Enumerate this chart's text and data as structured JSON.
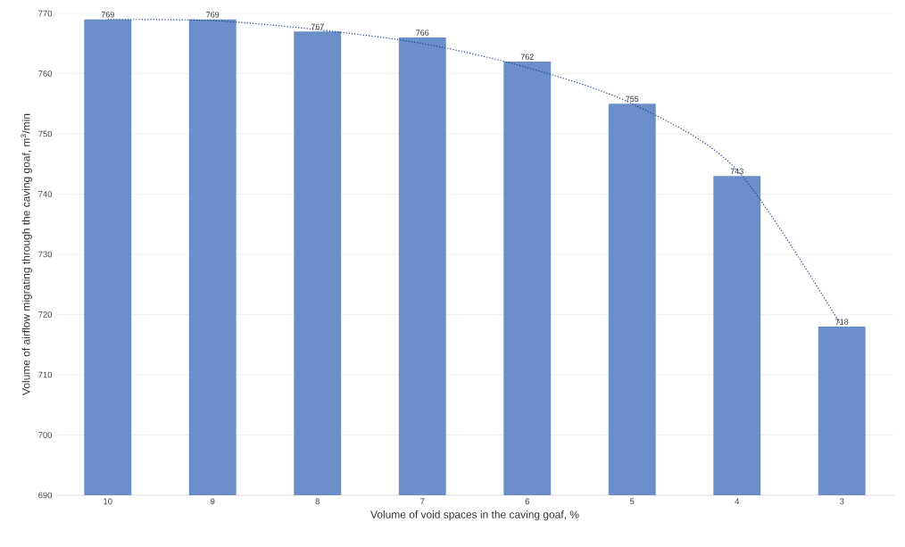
{
  "chart_data": {
    "type": "bar",
    "xlabel": "Volume of void spaces in the caving goaf, %",
    "ylabel": "Volume of airflow migrating through the caving goaf, m$^{3}$/min",
    "categories": [
      "10",
      "9",
      "8",
      "7",
      "6",
      "5",
      "4",
      "3"
    ],
    "series": [
      {
        "color": "#6a8fc8",
        "values": [
          769,
          769,
          767,
          766,
          762,
          755,
          743,
          718
        ],
        "value_labels": [
          "769",
          "769",
          "767",
          "766",
          "762",
          "755",
          "743",
          "718"
        ]
      },
      {
        "type": "line",
        "color": "#1f3f7a",
        "line_style": "dotted",
        "values": [
          769,
          768.8,
          767.3,
          765,
          761,
          755,
          744,
          718
        ]
      }
    ],
    "ylim": [
      690,
      770
    ],
    "yticks": [
      690,
      700,
      710,
      720,
      730,
      740,
      750,
      760,
      770
    ],
    "grid": "y"
  }
}
